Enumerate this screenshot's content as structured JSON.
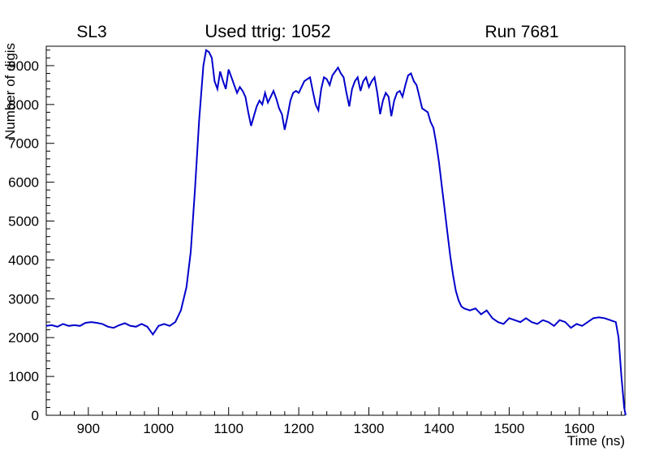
{
  "chart_data": {
    "type": "line",
    "title": "Used ttrig: 1052",
    "left_label": "SL3",
    "right_label": "Run 7681",
    "xlabel": "Time (ns)",
    "ylabel": "Number of digis",
    "xlim": [
      840,
      1665
    ],
    "ylim": [
      0,
      9500
    ],
    "xticks": [
      900,
      1000,
      1100,
      1200,
      1300,
      1400,
      1500,
      1600
    ],
    "yticks": [
      0,
      1000,
      2000,
      3000,
      4000,
      5000,
      6000,
      7000,
      8000,
      9000
    ],
    "x_minor_step": 20,
    "y_minor_step": 200,
    "grid": false,
    "legend_position": "none",
    "line_color": "#0000cc",
    "axis_color": "#000000",
    "background_color": "#ffffff",
    "points": [
      [
        840,
        2300
      ],
      [
        848,
        2320
      ],
      [
        856,
        2280
      ],
      [
        864,
        2350
      ],
      [
        872,
        2300
      ],
      [
        880,
        2320
      ],
      [
        888,
        2300
      ],
      [
        896,
        2380
      ],
      [
        904,
        2400
      ],
      [
        912,
        2380
      ],
      [
        920,
        2350
      ],
      [
        928,
        2280
      ],
      [
        936,
        2250
      ],
      [
        944,
        2320
      ],
      [
        952,
        2370
      ],
      [
        960,
        2300
      ],
      [
        968,
        2280
      ],
      [
        976,
        2350
      ],
      [
        984,
        2280
      ],
      [
        992,
        2080
      ],
      [
        1000,
        2300
      ],
      [
        1008,
        2350
      ],
      [
        1016,
        2300
      ],
      [
        1024,
        2400
      ],
      [
        1032,
        2700
      ],
      [
        1040,
        3300
      ],
      [
        1046,
        4200
      ],
      [
        1052,
        5800
      ],
      [
        1058,
        7600
      ],
      [
        1064,
        9000
      ],
      [
        1068,
        9400
      ],
      [
        1072,
        9350
      ],
      [
        1076,
        9200
      ],
      [
        1080,
        8600
      ],
      [
        1084,
        8400
      ],
      [
        1088,
        8850
      ],
      [
        1092,
        8600
      ],
      [
        1096,
        8400
      ],
      [
        1100,
        8900
      ],
      [
        1104,
        8700
      ],
      [
        1108,
        8500
      ],
      [
        1112,
        8300
      ],
      [
        1116,
        8450
      ],
      [
        1120,
        8350
      ],
      [
        1124,
        8200
      ],
      [
        1128,
        7800
      ],
      [
        1132,
        7450
      ],
      [
        1136,
        7700
      ],
      [
        1140,
        7950
      ],
      [
        1144,
        8100
      ],
      [
        1148,
        8000
      ],
      [
        1152,
        8300
      ],
      [
        1156,
        8050
      ],
      [
        1160,
        8200
      ],
      [
        1164,
        8350
      ],
      [
        1168,
        8150
      ],
      [
        1172,
        7900
      ],
      [
        1176,
        7750
      ],
      [
        1180,
        7350
      ],
      [
        1184,
        7700
      ],
      [
        1188,
        8100
      ],
      [
        1192,
        8300
      ],
      [
        1196,
        8350
      ],
      [
        1200,
        8300
      ],
      [
        1204,
        8450
      ],
      [
        1208,
        8600
      ],
      [
        1212,
        8650
      ],
      [
        1216,
        8700
      ],
      [
        1220,
        8350
      ],
      [
        1224,
        8000
      ],
      [
        1228,
        7850
      ],
      [
        1232,
        8400
      ],
      [
        1236,
        8700
      ],
      [
        1240,
        8650
      ],
      [
        1244,
        8500
      ],
      [
        1248,
        8750
      ],
      [
        1252,
        8850
      ],
      [
        1256,
        8950
      ],
      [
        1260,
        8800
      ],
      [
        1264,
        8700
      ],
      [
        1268,
        8300
      ],
      [
        1272,
        7950
      ],
      [
        1276,
        8400
      ],
      [
        1280,
        8600
      ],
      [
        1284,
        8700
      ],
      [
        1288,
        8350
      ],
      [
        1292,
        8600
      ],
      [
        1296,
        8700
      ],
      [
        1300,
        8450
      ],
      [
        1304,
        8600
      ],
      [
        1308,
        8700
      ],
      [
        1312,
        8300
      ],
      [
        1316,
        7750
      ],
      [
        1320,
        8100
      ],
      [
        1324,
        8300
      ],
      [
        1328,
        8200
      ],
      [
        1332,
        7700
      ],
      [
        1336,
        8100
      ],
      [
        1340,
        8300
      ],
      [
        1344,
        8350
      ],
      [
        1348,
        8200
      ],
      [
        1352,
        8500
      ],
      [
        1356,
        8750
      ],
      [
        1360,
        8800
      ],
      [
        1364,
        8600
      ],
      [
        1368,
        8500
      ],
      [
        1372,
        8200
      ],
      [
        1376,
        7900
      ],
      [
        1380,
        7850
      ],
      [
        1384,
        7800
      ],
      [
        1388,
        7550
      ],
      [
        1392,
        7400
      ],
      [
        1396,
        7000
      ],
      [
        1400,
        6500
      ],
      [
        1404,
        5900
      ],
      [
        1408,
        5300
      ],
      [
        1412,
        4700
      ],
      [
        1416,
        4100
      ],
      [
        1420,
        3600
      ],
      [
        1424,
        3200
      ],
      [
        1428,
        2950
      ],
      [
        1432,
        2800
      ],
      [
        1436,
        2750
      ],
      [
        1444,
        2700
      ],
      [
        1452,
        2750
      ],
      [
        1460,
        2600
      ],
      [
        1468,
        2700
      ],
      [
        1476,
        2500
      ],
      [
        1484,
        2400
      ],
      [
        1492,
        2350
      ],
      [
        1500,
        2500
      ],
      [
        1508,
        2450
      ],
      [
        1516,
        2400
      ],
      [
        1524,
        2500
      ],
      [
        1532,
        2400
      ],
      [
        1540,
        2350
      ],
      [
        1548,
        2450
      ],
      [
        1556,
        2400
      ],
      [
        1564,
        2300
      ],
      [
        1572,
        2450
      ],
      [
        1580,
        2400
      ],
      [
        1588,
        2250
      ],
      [
        1596,
        2350
      ],
      [
        1604,
        2300
      ],
      [
        1612,
        2400
      ],
      [
        1620,
        2500
      ],
      [
        1628,
        2520
      ],
      [
        1636,
        2500
      ],
      [
        1644,
        2450
      ],
      [
        1652,
        2400
      ],
      [
        1656,
        2000
      ],
      [
        1660,
        1000
      ],
      [
        1664,
        200
      ],
      [
        1666,
        0
      ]
    ]
  }
}
